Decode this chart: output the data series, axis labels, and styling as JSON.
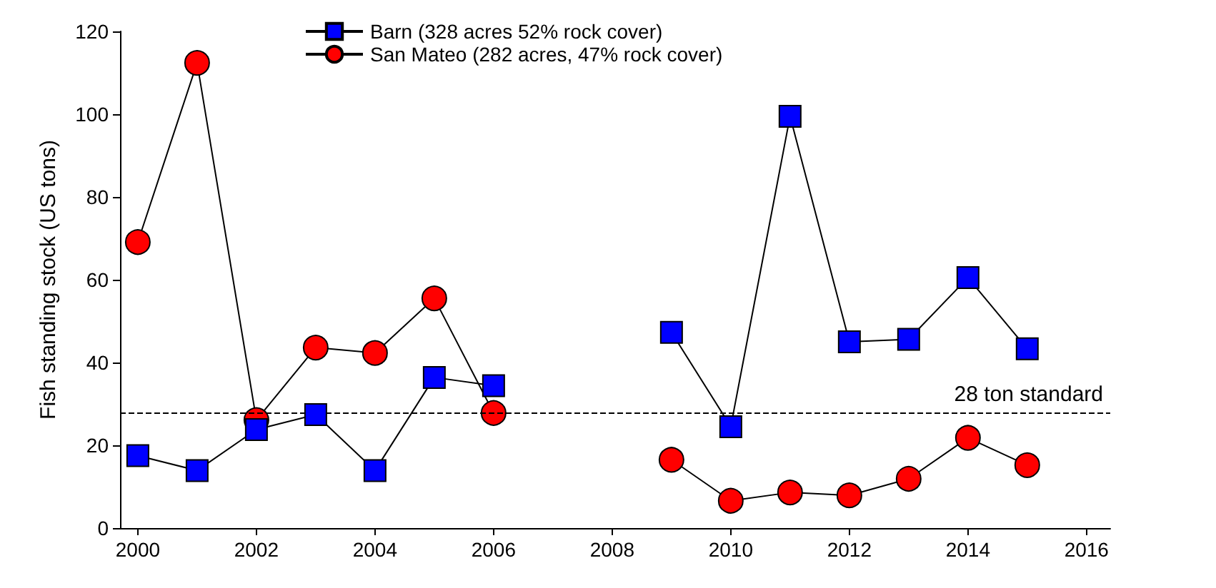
{
  "chart_data": {
    "type": "line",
    "ylabel": "Fish standing stock (US tons)",
    "x": [
      2000,
      2001,
      2002,
      2003,
      2004,
      2005,
      2006,
      2007,
      2008,
      2009,
      2010,
      2011,
      2012,
      2013,
      2014,
      2015
    ],
    "series": [
      {
        "name": "Barn (328 acres 52% rock cover)",
        "color": "#0000ff",
        "marker": "square",
        "values": [
          17.5,
          13.9,
          23.8,
          27.4,
          13.9,
          36.4,
          34.4,
          null,
          null,
          47.3,
          24.5,
          99.5,
          45,
          45.6,
          60.5,
          43.3
        ]
      },
      {
        "name": "San Mateo (282 acres, 47% rock cover)",
        "color": "#ff0000",
        "marker": "circle",
        "values": [
          69.1,
          112.4,
          26.1,
          43.6,
          42.3,
          55.5,
          27.8,
          null,
          null,
          16.5,
          6.6,
          8.6,
          7.9,
          11.9,
          21.8,
          15.2
        ]
      }
    ],
    "xlim": [
      1999.7,
      2016.4
    ],
    "xticks": [
      2000,
      2002,
      2004,
      2006,
      2008,
      2010,
      2012,
      2014,
      2016
    ],
    "ylim": [
      0,
      120
    ],
    "yticks": [
      0,
      20,
      40,
      60,
      80,
      100,
      120
    ],
    "ref_lines": [
      {
        "axis": "y",
        "value": 28,
        "label": "28 ton standard",
        "line_style": "dashed",
        "color": "#000000"
      }
    ],
    "legend": "top",
    "grid": false,
    "line_style": "solid"
  }
}
